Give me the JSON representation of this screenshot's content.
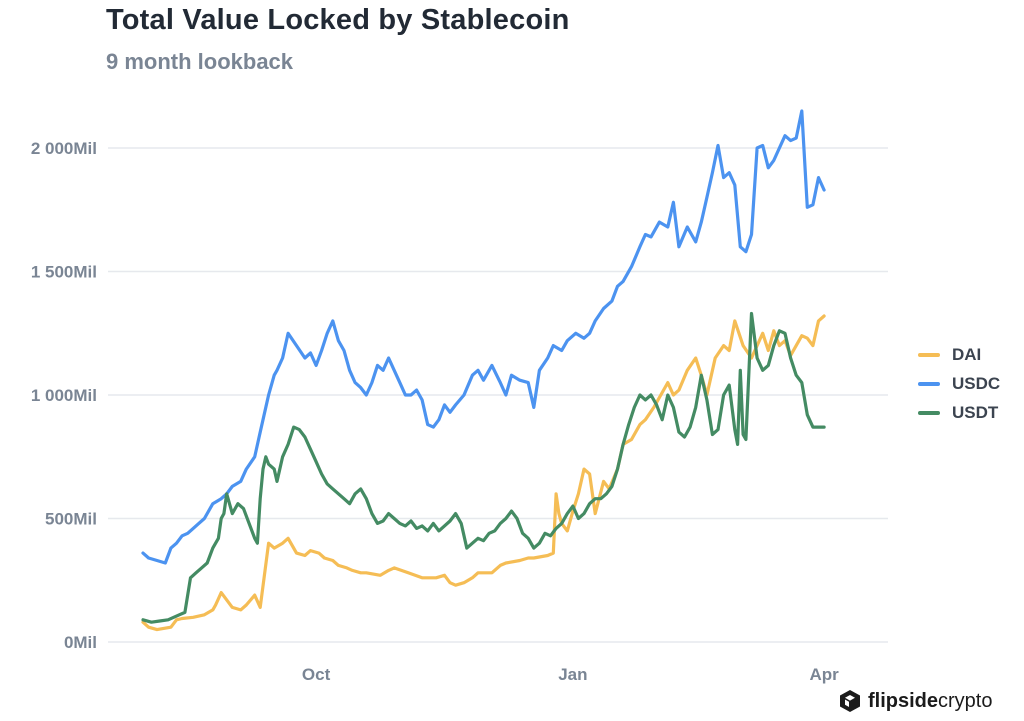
{
  "title": "Total Value Locked by Stablecoin",
  "subtitle": "9 month lookback",
  "brand": {
    "bold": "flipside",
    "light": "crypto"
  },
  "colors": {
    "DAI": "#f5bd55",
    "USDC": "#4c93f0",
    "USDT": "#448b63"
  },
  "chart_data": {
    "type": "line",
    "title": "Total Value Locked by Stablecoin",
    "subtitle": "9 month lookback",
    "xlabel": "",
    "ylabel": "",
    "ylim": [
      0,
      2000
    ],
    "yticks": [
      0,
      500,
      1000,
      1500,
      2000
    ],
    "ytick_labels": [
      "0Mil",
      "500Mil",
      "1 000Mil",
      "1 500Mil",
      "2 000Mil"
    ],
    "xlim": [
      0,
      254
    ],
    "xticks": [
      {
        "day": 62,
        "label": "Oct"
      },
      {
        "day": 154,
        "label": "Jan"
      },
      {
        "day": 244,
        "label": "Apr"
      }
    ],
    "grid": true,
    "legend_position": "right",
    "units": "Mil",
    "series": [
      {
        "name": "DAI",
        "x": [
          0,
          2,
          5,
          10,
          12,
          14,
          18,
          22,
          25,
          26,
          28,
          32,
          35,
          37,
          40,
          42,
          45,
          47,
          50,
          52,
          55,
          58,
          60,
          63,
          65,
          68,
          70,
          73,
          75,
          78,
          80,
          85,
          88,
          90,
          95,
          100,
          105,
          108,
          110,
          112,
          115,
          118,
          120,
          125,
          128,
          130,
          135,
          138,
          140,
          145,
          147,
          148,
          149,
          150,
          152,
          154,
          156,
          158,
          160,
          162,
          165,
          167,
          170,
          172,
          175,
          178,
          180,
          183,
          185,
          188,
          190,
          192,
          195,
          198,
          200,
          202,
          205,
          208,
          210,
          212,
          215,
          218,
          220,
          222,
          224,
          226,
          228,
          230,
          232,
          234,
          236,
          238,
          240,
          242,
          244
        ],
        "values": [
          80,
          60,
          50,
          60,
          90,
          95,
          100,
          110,
          130,
          150,
          200,
          140,
          130,
          150,
          190,
          140,
          400,
          380,
          400,
          420,
          360,
          350,
          370,
          360,
          340,
          330,
          310,
          300,
          290,
          280,
          280,
          270,
          290,
          300,
          280,
          260,
          260,
          270,
          240,
          230,
          240,
          260,
          280,
          280,
          310,
          320,
          330,
          340,
          340,
          350,
          360,
          600,
          520,
          480,
          450,
          530,
          600,
          700,
          680,
          520,
          650,
          620,
          700,
          800,
          820,
          880,
          900,
          950,
          990,
          1050,
          1000,
          1020,
          1100,
          1150,
          1080,
          1000,
          1150,
          1200,
          1180,
          1300,
          1200,
          1150,
          1200,
          1250,
          1180,
          1260,
          1200,
          1220,
          1160,
          1200,
          1240,
          1230,
          1200,
          1300,
          1320
        ]
      },
      {
        "name": "USDC",
        "x": [
          0,
          2,
          5,
          8,
          10,
          12,
          14,
          16,
          18,
          20,
          22,
          25,
          28,
          30,
          32,
          35,
          37,
          40,
          42,
          45,
          47,
          48,
          50,
          52,
          55,
          58,
          60,
          62,
          64,
          66,
          68,
          70,
          72,
          74,
          76,
          78,
          80,
          82,
          84,
          86,
          88,
          90,
          92,
          94,
          96,
          98,
          100,
          102,
          104,
          106,
          108,
          110,
          112,
          115,
          118,
          120,
          122,
          125,
          128,
          130,
          132,
          135,
          138,
          140,
          142,
          145,
          147,
          150,
          152,
          155,
          158,
          160,
          162,
          165,
          168,
          170,
          172,
          175,
          178,
          180,
          182,
          185,
          188,
          190,
          192,
          195,
          198,
          200,
          202,
          204,
          206,
          208,
          210,
          212,
          214,
          216,
          218,
          220,
          222,
          224,
          226,
          228,
          230,
          232,
          234,
          236,
          238,
          240,
          242,
          244
        ],
        "values": [
          360,
          340,
          330,
          320,
          380,
          400,
          430,
          440,
          460,
          480,
          500,
          560,
          580,
          600,
          630,
          650,
          700,
          750,
          850,
          1000,
          1080,
          1100,
          1150,
          1250,
          1200,
          1150,
          1170,
          1120,
          1180,
          1250,
          1300,
          1220,
          1180,
          1100,
          1050,
          1030,
          1000,
          1050,
          1120,
          1100,
          1150,
          1100,
          1050,
          1000,
          1000,
          1020,
          980,
          880,
          870,
          900,
          960,
          930,
          960,
          1000,
          1080,
          1100,
          1060,
          1120,
          1050,
          1000,
          1080,
          1060,
          1050,
          950,
          1100,
          1150,
          1200,
          1180,
          1220,
          1250,
          1230,
          1250,
          1300,
          1350,
          1380,
          1440,
          1460,
          1520,
          1600,
          1650,
          1640,
          1700,
          1680,
          1780,
          1600,
          1680,
          1620,
          1700,
          1800,
          1900,
          2010,
          1880,
          1900,
          1850,
          1600,
          1580,
          1650,
          2000,
          2010,
          1920,
          1950,
          2000,
          2050,
          2030,
          2040,
          2150,
          1760,
          1770,
          1880,
          1830
        ]
      },
      {
        "name": "USDT",
        "x": [
          0,
          3,
          6,
          9,
          11,
          13,
          15,
          17,
          19,
          21,
          23,
          25,
          27,
          28,
          29,
          30,
          32,
          34,
          36,
          38,
          40,
          41,
          42,
          43,
          44,
          45,
          47,
          48,
          49,
          50,
          52,
          54,
          56,
          58,
          60,
          62,
          64,
          66,
          68,
          70,
          72,
          74,
          76,
          78,
          80,
          82,
          84,
          86,
          88,
          90,
          92,
          94,
          96,
          98,
          100,
          102,
          104,
          106,
          108,
          110,
          112,
          114,
          116,
          118,
          120,
          122,
          124,
          126,
          128,
          130,
          132,
          134,
          136,
          138,
          140,
          142,
          144,
          146,
          148,
          150,
          152,
          154,
          156,
          158,
          160,
          162,
          164,
          166,
          168,
          170,
          172,
          174,
          176,
          178,
          180,
          182,
          184,
          186,
          188,
          190,
          192,
          194,
          196,
          198,
          200,
          202,
          204,
          206,
          208,
          210,
          212,
          213,
          214,
          215,
          216,
          218,
          220,
          222,
          224,
          226,
          228,
          230,
          232,
          234,
          236,
          238,
          240,
          242,
          244
        ],
        "values": [
          90,
          80,
          85,
          90,
          100,
          110,
          120,
          260,
          280,
          300,
          320,
          380,
          420,
          500,
          520,
          600,
          520,
          560,
          540,
          480,
          420,
          400,
          580,
          700,
          750,
          720,
          700,
          650,
          700,
          750,
          800,
          870,
          860,
          830,
          780,
          730,
          680,
          640,
          620,
          600,
          580,
          560,
          600,
          620,
          580,
          520,
          480,
          490,
          520,
          500,
          480,
          470,
          490,
          460,
          470,
          450,
          480,
          450,
          470,
          490,
          520,
          480,
          380,
          400,
          420,
          410,
          440,
          450,
          480,
          500,
          530,
          500,
          440,
          420,
          380,
          400,
          440,
          430,
          460,
          480,
          520,
          550,
          500,
          520,
          560,
          580,
          580,
          600,
          630,
          700,
          800,
          880,
          950,
          1000,
          980,
          1000,
          960,
          900,
          1000,
          950,
          850,
          830,
          870,
          950,
          1080,
          980,
          840,
          860,
          1000,
          1040,
          860,
          800,
          1100,
          840,
          820,
          1330,
          1150,
          1100,
          1120,
          1200,
          1260,
          1250,
          1150,
          1080,
          1050,
          920,
          870,
          870,
          870
        ]
      }
    ]
  }
}
